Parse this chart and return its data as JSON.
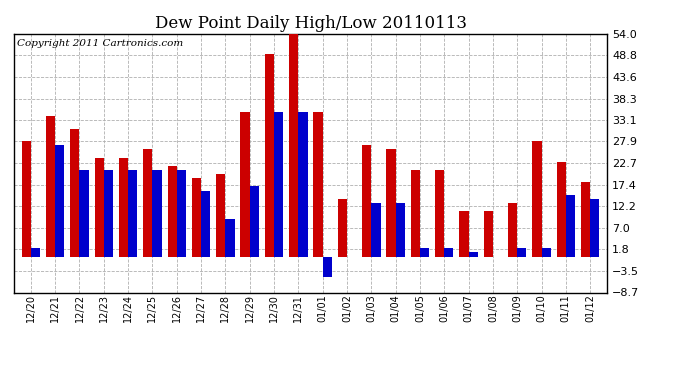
{
  "title": "Dew Point Daily High/Low 20110113",
  "copyright": "Copyright 2011 Cartronics.com",
  "dates": [
    "12/20",
    "12/21",
    "12/22",
    "12/23",
    "12/24",
    "12/25",
    "12/26",
    "12/27",
    "12/28",
    "12/29",
    "12/30",
    "12/31",
    "01/01",
    "01/02",
    "01/03",
    "01/04",
    "01/05",
    "01/06",
    "01/07",
    "01/08",
    "01/09",
    "01/10",
    "01/11",
    "01/12"
  ],
  "highs": [
    28,
    34,
    31,
    24,
    24,
    26,
    22,
    19,
    20,
    35,
    49,
    54,
    35,
    14,
    27,
    26,
    21,
    21,
    11,
    11,
    13,
    28,
    23,
    18
  ],
  "lows": [
    2,
    27,
    21,
    21,
    21,
    21,
    21,
    16,
    9,
    17,
    35,
    35,
    -5,
    0,
    13,
    13,
    2,
    2,
    1,
    0,
    2,
    2,
    15,
    14
  ],
  "yticks": [
    -8.7,
    -3.5,
    1.8,
    7.0,
    12.2,
    17.4,
    22.7,
    27.9,
    33.1,
    38.3,
    43.6,
    48.8,
    54.0
  ],
  "ymin": -8.7,
  "ymax": 54.0,
  "bar_color_high": "#cc0000",
  "bar_color_low": "#0000cc",
  "background_color": "#ffffff",
  "grid_color": "#b0b0b0",
  "title_fontsize": 12,
  "copyright_fontsize": 7.5,
  "bar_width": 0.38,
  "figwidth": 6.9,
  "figheight": 3.75,
  "dpi": 100
}
